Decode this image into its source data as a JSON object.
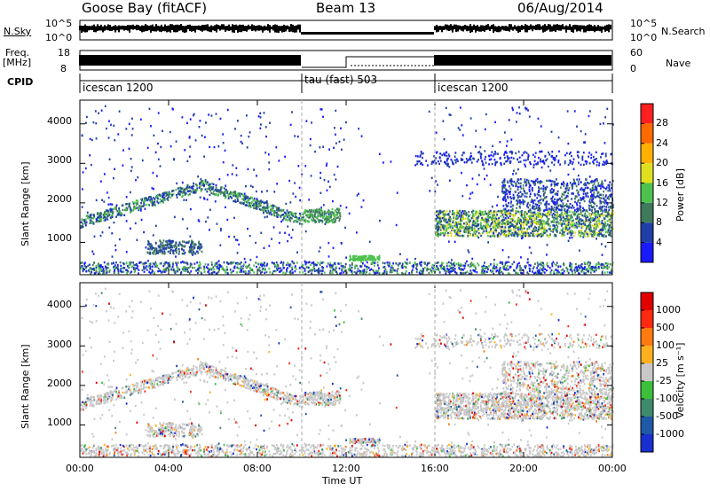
{
  "header": {
    "station": "Goose Bay (fitACF)",
    "beam": "Beam 13",
    "date": "06/Aug/2014"
  },
  "status_panel": {
    "nsky_label": "N.Sky",
    "nsky_ticks": [
      "10^5",
      "10^0"
    ],
    "nsearch_label": "N.Search",
    "nsearch_ticks": [
      "10^5",
      "10^0"
    ],
    "freq_label": "Freq.",
    "freq_unit": "[MHz]",
    "freq_ticks": [
      "18",
      "8"
    ],
    "nave_label": "Nave",
    "nave_ticks": [
      "60",
      "0"
    ],
    "cpid_label": "CPID",
    "cpid_segments": [
      {
        "label": "icescan 1200",
        "start_hour": 0,
        "end_hour": 10
      },
      {
        "label": "tau (fast) 503",
        "start_hour": 10,
        "end_hour": 16
      },
      {
        "label": "icescan 1200",
        "start_hour": 16,
        "end_hour": 24
      }
    ]
  },
  "chart_data": [
    {
      "type": "heatmap",
      "name": "power",
      "ylabel": "Slant Range [km]",
      "yticks": [
        "1000",
        "2000",
        "3000",
        "4000"
      ],
      "ylim": [
        180,
        4600
      ],
      "xlim_hours": [
        0,
        24
      ],
      "colorbar": {
        "label": "Power [dB]",
        "ticks": [
          "4",
          "8",
          "12",
          "16",
          "20",
          "24",
          "28"
        ],
        "colors": [
          "#1a1aff",
          "#1f3fa8",
          "#3f7a5c",
          "#4ec14e",
          "#e0e020",
          "#ffb000",
          "#ff6a00",
          "#ff2020"
        ]
      }
    },
    {
      "type": "heatmap",
      "name": "velocity",
      "ylabel": "Slant Range [km]",
      "yticks": [
        "1000",
        "2000",
        "3000",
        "4000"
      ],
      "ylim": [
        180,
        4600
      ],
      "xlim_hours": [
        0,
        24
      ],
      "xlabel": "Time UT",
      "xticks": [
        "00:00",
        "04:00",
        "08:00",
        "12:00",
        "16:00",
        "20:00",
        "00:00"
      ],
      "colorbar": {
        "label": "Velocity [m s⁻¹]",
        "ticks": [
          "1000",
          "500",
          "100",
          "25",
          "-25",
          "-100",
          "-500",
          "-1000"
        ],
        "colors": [
          "#1a2fd0",
          "#1f5aa8",
          "#3f8a6c",
          "#3cc03c",
          "#c8c8c8",
          "#ffb020",
          "#ff7a10",
          "#ff2a10",
          "#e00000"
        ]
      }
    }
  ]
}
